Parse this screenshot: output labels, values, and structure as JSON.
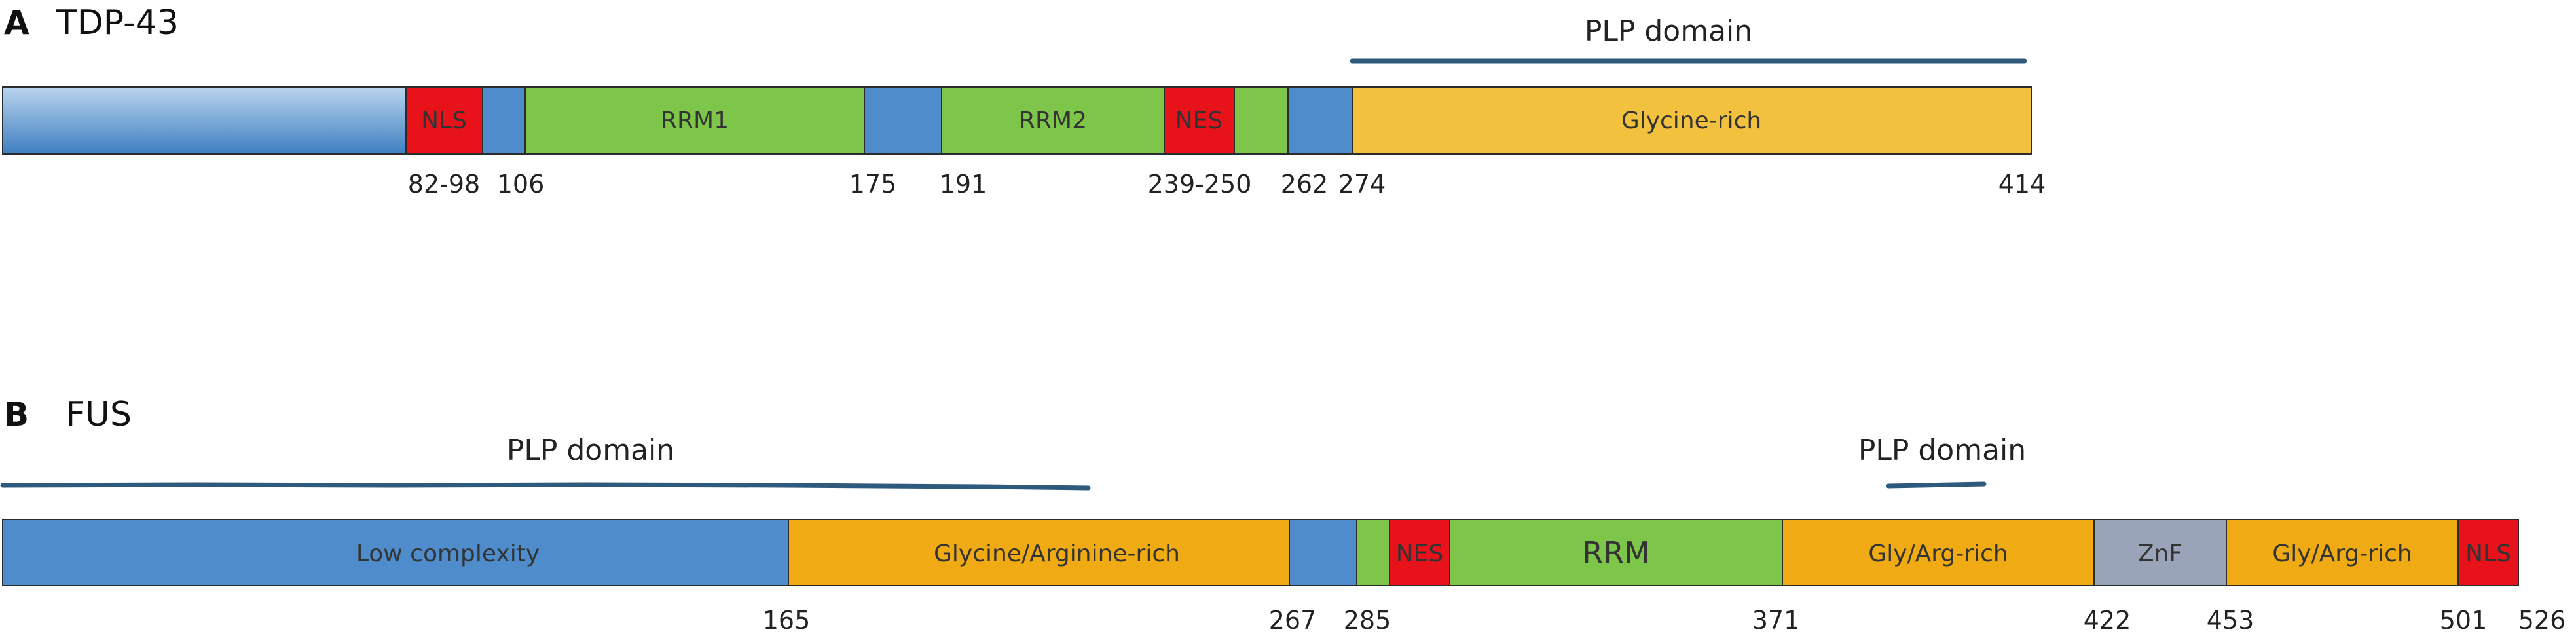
{
  "panels": [
    {
      "letter": "A",
      "name": "TDP-43",
      "plp_labels": [
        "PLP domain"
      ],
      "segments": [
        {
          "label": "",
          "color": "blue"
        },
        {
          "label": "NLS",
          "color": "red"
        },
        {
          "label": "",
          "color": "blue"
        },
        {
          "label": "RRM1",
          "color": "green"
        },
        {
          "label": "",
          "color": "blue"
        },
        {
          "label": "RRM2",
          "color": "green"
        },
        {
          "label": "NES",
          "color": "red"
        },
        {
          "label": "",
          "color": "green"
        },
        {
          "label": "",
          "color": "blue"
        },
        {
          "label": "Glycine-rich",
          "color": "yellow"
        }
      ],
      "ticks": [
        "82-98",
        "106",
        "175",
        "191",
        "239-250",
        "262",
        "274",
        "414"
      ]
    },
    {
      "letter": "B",
      "name": "FUS",
      "plp_labels": [
        "PLP domain",
        "PLP domain"
      ],
      "segments": [
        {
          "label": "Low complexity",
          "color": "blue"
        },
        {
          "label": "Glycine/Arginine-rich",
          "color": "orange"
        },
        {
          "label": "",
          "color": "blue"
        },
        {
          "label": "",
          "color": "green"
        },
        {
          "label": "NES",
          "color": "red"
        },
        {
          "label": "RRM",
          "color": "green"
        },
        {
          "label": "Gly/Arg-rich",
          "color": "orange"
        },
        {
          "label": "ZnF",
          "color": "gray"
        },
        {
          "label": "Gly/Arg-rich",
          "color": "orange"
        },
        {
          "label": "NLS",
          "color": "red"
        }
      ],
      "ticks": [
        "165",
        "267",
        "285",
        "371",
        "422",
        "453",
        "501",
        "526"
      ]
    }
  ],
  "colors": {
    "blue": "#4f8ccc",
    "red": "#e8131a",
    "green": "#7dc64a",
    "yellow": "#f2c23e",
    "orange": "#f0ab14",
    "gray": "#9aa4b8",
    "line": "#2e5a7e",
    "border": "#2b2b2b"
  }
}
